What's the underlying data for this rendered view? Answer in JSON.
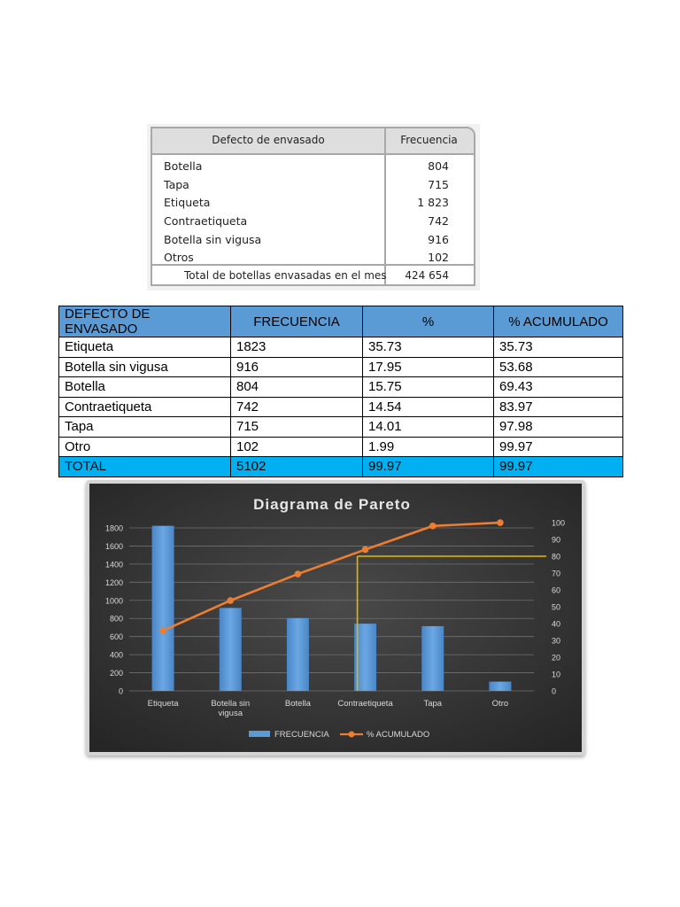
{
  "source_table": {
    "headers": [
      "Defecto de envasado",
      "Frecuencia"
    ],
    "rows": [
      {
        "label": "Botella",
        "value": "804"
      },
      {
        "label": "Tapa",
        "value": "715"
      },
      {
        "label": "Etiqueta",
        "value": "1 823"
      },
      {
        "label": "Contraetiqueta",
        "value": "742"
      },
      {
        "label": "Botella sin vigusa",
        "value": "916"
      },
      {
        "label": "Otros",
        "value": "102"
      }
    ],
    "total_label": "Total de botellas envasadas en el mes",
    "total_value": "424 654"
  },
  "pareto_table": {
    "headers": [
      "DEFECTO DE ENVASADO",
      "FRECUENCIA",
      "%",
      "% ACUMULADO"
    ],
    "rows": [
      [
        "Etiqueta",
        "1823",
        "35.73",
        "35.73"
      ],
      [
        "Botella sin vigusa",
        "916",
        "17.95",
        "53.68"
      ],
      [
        "Botella",
        "804",
        "15.75",
        "69.43"
      ],
      [
        "Contraetiqueta",
        "742",
        "14.54",
        "83.97"
      ],
      [
        "Tapa",
        "715",
        "14.01",
        "97.98"
      ],
      [
        "Otro",
        "102",
        "1.99",
        "99.97"
      ]
    ],
    "total": [
      "TOTAL",
      "5102",
      "99.97",
      "99.97"
    ],
    "header_color": "#5b9bd5",
    "total_color": "#00b0f0"
  },
  "chart_data": {
    "type": "bar",
    "title": "Diagrama de Pareto",
    "categories": [
      "Etiqueta",
      "Botella sin vigusa",
      "Botella",
      "Contraetiqueta",
      "Tapa",
      "Otro"
    ],
    "category_tick_lines": [
      [
        "Etiqueta"
      ],
      [
        "Botella sin",
        "vigusa"
      ],
      [
        "Botella"
      ],
      [
        "Contraetiqueta"
      ],
      [
        "Tapa"
      ],
      [
        "Otro"
      ]
    ],
    "series": [
      {
        "name": "FRECUENCIA",
        "type": "bar",
        "axis": "left",
        "values": [
          1823,
          916,
          804,
          742,
          715,
          102
        ],
        "color": "#5b9bd5"
      },
      {
        "name": "% ACUMULADO",
        "type": "line",
        "axis": "right",
        "values": [
          35.73,
          53.68,
          69.43,
          83.97,
          97.98,
          99.97
        ],
        "color": "#ed7d31"
      }
    ],
    "left_axis": {
      "min": 0,
      "max": 1800,
      "step": 200
    },
    "right_axis": {
      "min": 0,
      "max": 100,
      "step": 10
    },
    "reference_line": {
      "value": 80,
      "axis": "right",
      "category_index": 3,
      "color": "#e6b800"
    },
    "grid": true,
    "legend": "bottom",
    "background": "#3c3c3c"
  }
}
